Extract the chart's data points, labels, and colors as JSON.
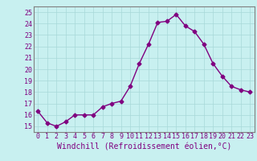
{
  "x": [
    0,
    1,
    2,
    3,
    4,
    5,
    6,
    7,
    8,
    9,
    10,
    11,
    12,
    13,
    14,
    15,
    16,
    17,
    18,
    19,
    20,
    21,
    22,
    23
  ],
  "y": [
    16.3,
    15.3,
    15.0,
    15.4,
    16.0,
    16.0,
    16.0,
    16.7,
    17.0,
    17.2,
    18.5,
    20.5,
    22.2,
    24.1,
    24.2,
    24.8,
    23.8,
    23.3,
    22.2,
    20.5,
    19.4,
    18.5,
    18.2,
    18.0
  ],
  "line_color": "#800080",
  "marker": "D",
  "marker_size": 2.5,
  "bg_color": "#c8f0f0",
  "grid_color": "#a8d8d8",
  "xlabel": "Windchill (Refroidissement éolien,°C)",
  "xlabel_color": "#800080",
  "tick_color": "#800080",
  "spine_color": "#808080",
  "ylim": [
    14.5,
    25.5
  ],
  "xlim": [
    -0.5,
    23.5
  ],
  "yticks": [
    15,
    16,
    17,
    18,
    19,
    20,
    21,
    22,
    23,
    24,
    25
  ],
  "xtick_labels": [
    "0",
    "1",
    "2",
    "3",
    "4",
    "5",
    "6",
    "7",
    "8",
    "9",
    "10",
    "11",
    "12",
    "13",
    "14",
    "15",
    "16",
    "17",
    "18",
    "19",
    "20",
    "21",
    "22",
    "23"
  ],
  "tick_fontsize": 6,
  "xlabel_fontsize": 7
}
